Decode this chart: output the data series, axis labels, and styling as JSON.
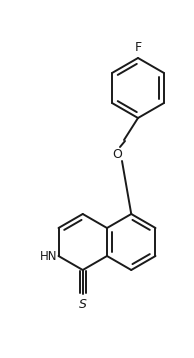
{
  "background_color": "#ffffff",
  "line_color": "#1a1a1a",
  "line_width": 1.4,
  "font_size": 9,
  "F_label": "F",
  "O_label": "O",
  "NH_label": "HN",
  "S_label": "S"
}
